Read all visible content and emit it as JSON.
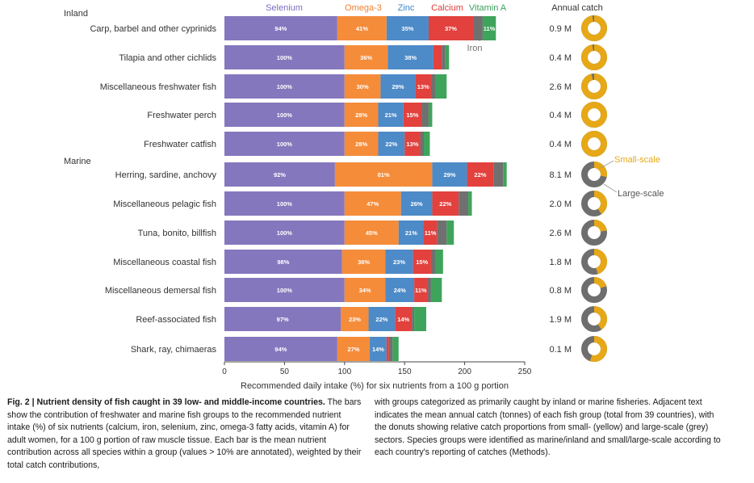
{
  "chart_data": {
    "type": "bar",
    "stacked": true,
    "orientation": "horizontal",
    "xlabel": "Recommended daily intake (%) for six nutrients from a 100 g portion",
    "xlim": [
      0,
      250
    ],
    "xticks": [
      0,
      50,
      100,
      150,
      200,
      250
    ],
    "grid": false,
    "nutrients": [
      {
        "name": "Selenium",
        "color": "#8577bd"
      },
      {
        "name": "Omega-3",
        "color": "#f58c3a"
      },
      {
        "name": "Zinc",
        "color": "#4d8ac8"
      },
      {
        "name": "Calcium",
        "color": "#e2413d"
      },
      {
        "name": "Iron",
        "color": "#707070"
      },
      {
        "name": "Vitamin A",
        "color": "#3fa45b"
      }
    ],
    "legend_labels": {
      "selenium": "Selenium",
      "omega3": "Omega-3",
      "zinc": "Zinc",
      "calcium": "Calcium",
      "vitamin_a": "Vitamin A",
      "iron": "Iron"
    },
    "group_labels": {
      "inland": "Inland",
      "marine": "Marine"
    },
    "catch_header": "Annual catch",
    "donut_labels": {
      "small": "Small-scale",
      "large": "Large-scale"
    },
    "donut_colors": {
      "small": "#e6a817",
      "large": "#6e6e6e"
    },
    "rows": [
      {
        "label": "Carp, barbel and other cyprinids",
        "group": "inland",
        "values": [
          94,
          41,
          35,
          37,
          8,
          11
        ],
        "catch": "0.9 M",
        "small_scale_share": 0.97
      },
      {
        "label": "Tilapia and other cichlids",
        "group": "inland",
        "values": [
          100,
          36,
          38,
          7,
          3,
          3
        ],
        "catch": "0.4 M",
        "small_scale_share": 0.97
      },
      {
        "label": "Miscellaneous freshwater fish",
        "group": "inland",
        "values": [
          100,
          30,
          29,
          13,
          4,
          9
        ],
        "catch": "2.6 M",
        "small_scale_share": 0.96
      },
      {
        "label": "Freshwater perch",
        "group": "inland",
        "values": [
          100,
          28,
          21,
          15,
          6,
          3
        ],
        "catch": "0.4 M",
        "small_scale_share": 1.0
      },
      {
        "label": "Freshwater catfish",
        "group": "inland",
        "values": [
          100,
          28,
          22,
          13,
          3,
          5
        ],
        "catch": "0.4 M",
        "small_scale_share": 1.0
      },
      {
        "label": "Herring, sardine, anchovy",
        "group": "marine",
        "values": [
          92,
          81,
          29,
          22,
          8,
          3
        ],
        "catch": "8.1 M",
        "small_scale_share": 0.28
      },
      {
        "label": "Miscellaneous pelagic fish",
        "group": "marine",
        "values": [
          100,
          47,
          26,
          22,
          8,
          3
        ],
        "catch": "2.0 M",
        "small_scale_share": 0.4
      },
      {
        "label": "Tuna, bonito, billfish",
        "group": "marine",
        "values": [
          100,
          45,
          21,
          11,
          8,
          6
        ],
        "catch": "2.6 M",
        "small_scale_share": 0.22
      },
      {
        "label": "Miscellaneous coastal fish",
        "group": "marine",
        "values": [
          98,
          36,
          23,
          15,
          4,
          6
        ],
        "catch": "1.8 M",
        "small_scale_share": 0.45
      },
      {
        "label": "Miscellaneous demersal fish",
        "group": "marine",
        "values": [
          100,
          34,
          24,
          11,
          3,
          9
        ],
        "catch": "0.8 M",
        "small_scale_share": 0.2
      },
      {
        "label": "Reef-associated fish",
        "group": "marine",
        "values": [
          97,
          23,
          22,
          14,
          2,
          10
        ],
        "catch": "1.9 M",
        "small_scale_share": 0.4
      },
      {
        "label": "Shark, ray, chimaeras",
        "group": "marine",
        "values": [
          94,
          27,
          14,
          2,
          3,
          5
        ],
        "catch": "0.1 M",
        "small_scale_share": 0.55
      }
    ]
  },
  "caption": {
    "bold": "Fig. 2 | Nutrient density of fish caught in 39 low- and middle-income countries.",
    "left": " The bars show the contribution of freshwater and marine fish groups to the recommended nutrient intake (%) of six nutrients (calcium, iron, selenium, zinc, omega-3 fatty acids, vitamin A) for adult women, for a 100 g portion of raw muscle tissue. Each bar is the mean nutrient contribution across all species within a group (values > 10% are annotated), weighted by their total catch contributions,",
    "right": "with groups categorized as primarily caught by inland or marine fisheries. Adjacent text indicates the mean annual catch (tonnes) of each fish group (total from 39 countries), with the donuts showing relative catch proportions from small- (yellow) and large-scale (grey) sectors. Species groups were identified as marine/inland and small/large-scale according to each country's reporting of catches (Methods)."
  }
}
